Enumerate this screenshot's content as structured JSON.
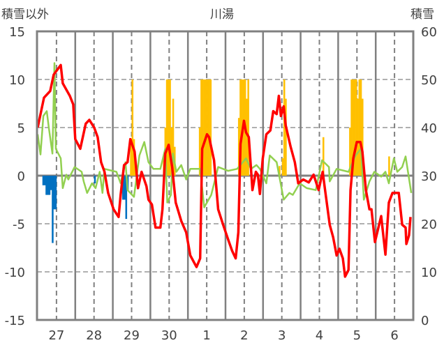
{
  "chart_data": {
    "type": "line",
    "title": "川湯",
    "left_axis_label": "積雪以外",
    "right_axis_label": "積雪",
    "xlim": [
      0,
      240
    ],
    "x_unit": "hours",
    "x_tick_labels": [
      "27",
      "28",
      "29",
      "30",
      "1",
      "2",
      "3",
      "4",
      "5",
      "6"
    ],
    "ylim_left": [
      -15,
      15
    ],
    "ylim_right": [
      0,
      60
    ],
    "left_ticks": [
      "15",
      "10",
      "5",
      "0",
      "-5",
      "-10",
      "-15"
    ],
    "right_ticks": [
      "60",
      "50",
      "40",
      "30",
      "20",
      "10",
      "0"
    ],
    "grid": true,
    "colors": {
      "red": "#ff0000",
      "green": "#92d050",
      "orange": "#ffc000",
      "blue": "#0070c0",
      "purple": "#7030a0",
      "frame": "#808080"
    },
    "red_line": [
      [
        0,
        5.0
      ],
      [
        4,
        8.1
      ],
      [
        8,
        8.8
      ],
      [
        10.2,
        10.5
      ],
      [
        14.7,
        11.5
      ],
      [
        16,
        9.6
      ],
      [
        20.5,
        8.3
      ],
      [
        22.7,
        7.4
      ],
      [
        24,
        3.8
      ],
      [
        27.2,
        2.8
      ],
      [
        30.7,
        5.4
      ],
      [
        33,
        5.8
      ],
      [
        36.1,
        5.0
      ],
      [
        38.3,
        4.0
      ],
      [
        40.5,
        1.4
      ],
      [
        42.7,
        0.4
      ],
      [
        45,
        -1.8
      ],
      [
        48.5,
        -3.5
      ],
      [
        51.7,
        -4.3
      ],
      [
        53,
        -2.0
      ],
      [
        55.2,
        1.1
      ],
      [
        57.4,
        1.4
      ],
      [
        59.2,
        3.8
      ],
      [
        61.9,
        2.5
      ],
      [
        64.1,
        -1.3
      ],
      [
        66.4,
        0.4
      ],
      [
        69.5,
        -1.1
      ],
      [
        70.8,
        -2.5
      ],
      [
        73,
        -3.0
      ],
      [
        75.3,
        -5.4
      ],
      [
        78.4,
        -5.4
      ],
      [
        79.7,
        -3.5
      ],
      [
        81.5,
        2.3
      ],
      [
        83.7,
        3.2
      ],
      [
        85.9,
        0.9
      ],
      [
        88.2,
        -2.8
      ],
      [
        91.7,
        -4.7
      ],
      [
        94.9,
        -5.9
      ],
      [
        97.5,
        -8.3
      ],
      [
        101.5,
        -9.5
      ],
      [
        103.8,
        -8.6
      ],
      [
        105.1,
        2.8
      ],
      [
        108.2,
        4.3
      ],
      [
        109.5,
        4.0
      ],
      [
        112.7,
        1.6
      ],
      [
        115.3,
        -3.5
      ],
      [
        118.5,
        -5.1
      ],
      [
        121.6,
        -6.6
      ],
      [
        124.2,
        -7.8
      ],
      [
        126.5,
        -8.6
      ],
      [
        128.2,
        -5.9
      ],
      [
        129.6,
        3.3
      ],
      [
        131.8,
        5.7
      ],
      [
        133.1,
        4.5
      ],
      [
        134.9,
        4.0
      ],
      [
        137.2,
        -1.5
      ],
      [
        139.4,
        0.4
      ],
      [
        140.7,
        0.1
      ],
      [
        142,
        -1.9
      ],
      [
        143.8,
        1.8
      ],
      [
        146.1,
        4.3
      ],
      [
        148.7,
        4.7
      ],
      [
        150.5,
        6.7
      ],
      [
        152.7,
        6.4
      ],
      [
        154.1,
        8.3
      ],
      [
        155.4,
        6.2
      ],
      [
        157.2,
        7.2
      ],
      [
        158.5,
        5.2
      ],
      [
        161.6,
        3.0
      ],
      [
        164.3,
        1.4
      ],
      [
        166.5,
        -0.8
      ],
      [
        169.7,
        -0.4
      ],
      [
        173.2,
        -0.7
      ],
      [
        176.3,
        0.1
      ],
      [
        179.5,
        -1.5
      ],
      [
        182.1,
        0.4
      ],
      [
        183.9,
        -1.8
      ],
      [
        186.6,
        -5.1
      ],
      [
        188.8,
        -6.4
      ],
      [
        191,
        -8.3
      ],
      [
        192.8,
        -7.6
      ],
      [
        195,
        -8.6
      ],
      [
        196.4,
        -10.5
      ],
      [
        198.6,
        -9.8
      ],
      [
        199.9,
        -1.5
      ],
      [
        201.7,
        1.8
      ],
      [
        203.9,
        3.5
      ],
      [
        206.2,
        3.5
      ],
      [
        207.5,
        2.5
      ],
      [
        209.7,
        -1.5
      ],
      [
        212,
        -3.5
      ],
      [
        213.3,
        -3.5
      ],
      [
        215.5,
        -6.9
      ],
      [
        219.5,
        -4.2
      ],
      [
        222.2,
        -8.2
      ],
      [
        224.4,
        -2.8
      ],
      [
        226.7,
        -1.8
      ],
      [
        230.7,
        -1.8
      ],
      [
        232.9,
        -5.1
      ],
      [
        235.1,
        -5.4
      ],
      [
        235.6,
        -7.1
      ],
      [
        237.3,
        -6.2
      ],
      [
        238.2,
        -4.3
      ]
    ],
    "green_line": [
      [
        0,
        4.3
      ],
      [
        1.8,
        2.2
      ],
      [
        3.6,
        6.2
      ],
      [
        5.8,
        6.7
      ],
      [
        7.1,
        5.0
      ],
      [
        9.4,
        2.3
      ],
      [
        10.7,
        11.7
      ],
      [
        11.6,
        2.8
      ],
      [
        14.7,
        1.8
      ],
      [
        16,
        -1.3
      ],
      [
        18.3,
        0.1
      ],
      [
        19.6,
        -0.4
      ],
      [
        23.6,
        0.9
      ],
      [
        28.1,
        0.4
      ],
      [
        29.4,
        -0.6
      ],
      [
        31.6,
        -1.8
      ],
      [
        34.7,
        -0.8
      ],
      [
        37,
        -1.3
      ],
      [
        39.6,
        0.4
      ],
      [
        41.4,
        -1.8
      ],
      [
        42.7,
        0.7
      ],
      [
        50.3,
        0.4
      ],
      [
        53,
        -0.8
      ],
      [
        56.1,
        1.4
      ],
      [
        57.4,
        -1.5
      ],
      [
        61.5,
        -2.2
      ],
      [
        65,
        2.1
      ],
      [
        68.1,
        3.5
      ],
      [
        70.8,
        1.4
      ],
      [
        73.9,
        0.7
      ],
      [
        78.4,
        0.7
      ],
      [
        81.5,
        2.8
      ],
      [
        82.8,
        -2.8
      ],
      [
        85.1,
        -2.0
      ],
      [
        86.4,
        2.3
      ],
      [
        88.6,
        0.4
      ],
      [
        91.7,
        1.1
      ],
      [
        94.9,
        -0.4
      ],
      [
        97.5,
        0.7
      ],
      [
        103.8,
        0.7
      ],
      [
        106.4,
        -3.3
      ],
      [
        110.9,
        -2.0
      ],
      [
        115.3,
        0.9
      ],
      [
        121.6,
        0.5
      ],
      [
        127.4,
        0.7
      ],
      [
        133.1,
        1.8
      ],
      [
        136.3,
        0.7
      ],
      [
        139.8,
        1.1
      ],
      [
        142,
        0.7
      ],
      [
        146.1,
        -0.8
      ],
      [
        148.3,
        2.1
      ],
      [
        152.7,
        1.4
      ],
      [
        157.2,
        -2.5
      ],
      [
        160.8,
        -1.8
      ],
      [
        163,
        -2.0
      ],
      [
        167.4,
        -0.8
      ],
      [
        171.9,
        -1.3
      ],
      [
        177.7,
        -1.5
      ],
      [
        181.7,
        1.6
      ],
      [
        186.1,
        0.9
      ],
      [
        186.6,
        -0.6
      ],
      [
        191,
        0.7
      ],
      [
        198.6,
        0.4
      ],
      [
        203.1,
        2.1
      ],
      [
        206.6,
        2.8
      ],
      [
        208.4,
        -2.5
      ],
      [
        212,
        -0.6
      ],
      [
        215.1,
        0.4
      ],
      [
        219.5,
        -0.1
      ],
      [
        222.2,
        0.4
      ],
      [
        224.4,
        -0.8
      ],
      [
        227.6,
        1.8
      ],
      [
        229.8,
        0.4
      ],
      [
        232.9,
        0.9
      ],
      [
        235.1,
        2.0
      ],
      [
        238.7,
        -1.8
      ]
    ],
    "orange_bars": [
      [
        59,
        3.8
      ],
      [
        60,
        10
      ],
      [
        61,
        3.8
      ],
      [
        62,
        1.8
      ],
      [
        80,
        1.8
      ],
      [
        81,
        5
      ],
      [
        82,
        10
      ],
      [
        83,
        10
      ],
      [
        84,
        10
      ],
      [
        85,
        5
      ],
      [
        86,
        8
      ],
      [
        87,
        3
      ],
      [
        103,
        5
      ],
      [
        104,
        10
      ],
      [
        105,
        10
      ],
      [
        106,
        10
      ],
      [
        107,
        10
      ],
      [
        108,
        10
      ],
      [
        109,
        10
      ],
      [
        110,
        10
      ],
      [
        128,
        6
      ],
      [
        129,
        10
      ],
      [
        130,
        10
      ],
      [
        131,
        10
      ],
      [
        132,
        10
      ],
      [
        133,
        8
      ],
      [
        134,
        10
      ],
      [
        154,
        1
      ],
      [
        156,
        1.8
      ],
      [
        157,
        10
      ],
      [
        158,
        8
      ],
      [
        182,
        4
      ],
      [
        199,
        5
      ],
      [
        200,
        10
      ],
      [
        201,
        10
      ],
      [
        202,
        10
      ],
      [
        203,
        10
      ],
      [
        204,
        8
      ],
      [
        205,
        10
      ],
      [
        206,
        10
      ],
      [
        207,
        8
      ],
      [
        224,
        2
      ]
    ],
    "blue_bars": [
      [
        3,
        -1
      ],
      [
        4,
        -1
      ],
      [
        5,
        -2
      ],
      [
        6,
        -2
      ],
      [
        7,
        -2
      ],
      [
        8,
        -1.5
      ],
      [
        9,
        -7
      ],
      [
        10,
        -3.5
      ],
      [
        11,
        -3.5
      ],
      [
        36,
        -0.8
      ],
      [
        54,
        -2.5
      ],
      [
        55,
        -2.5
      ],
      [
        56,
        -4.5
      ],
      [
        57,
        -1.5
      ]
    ],
    "purple_line_right_axis": [
      [
        0,
        0
      ],
      [
        240,
        0
      ]
    ]
  }
}
